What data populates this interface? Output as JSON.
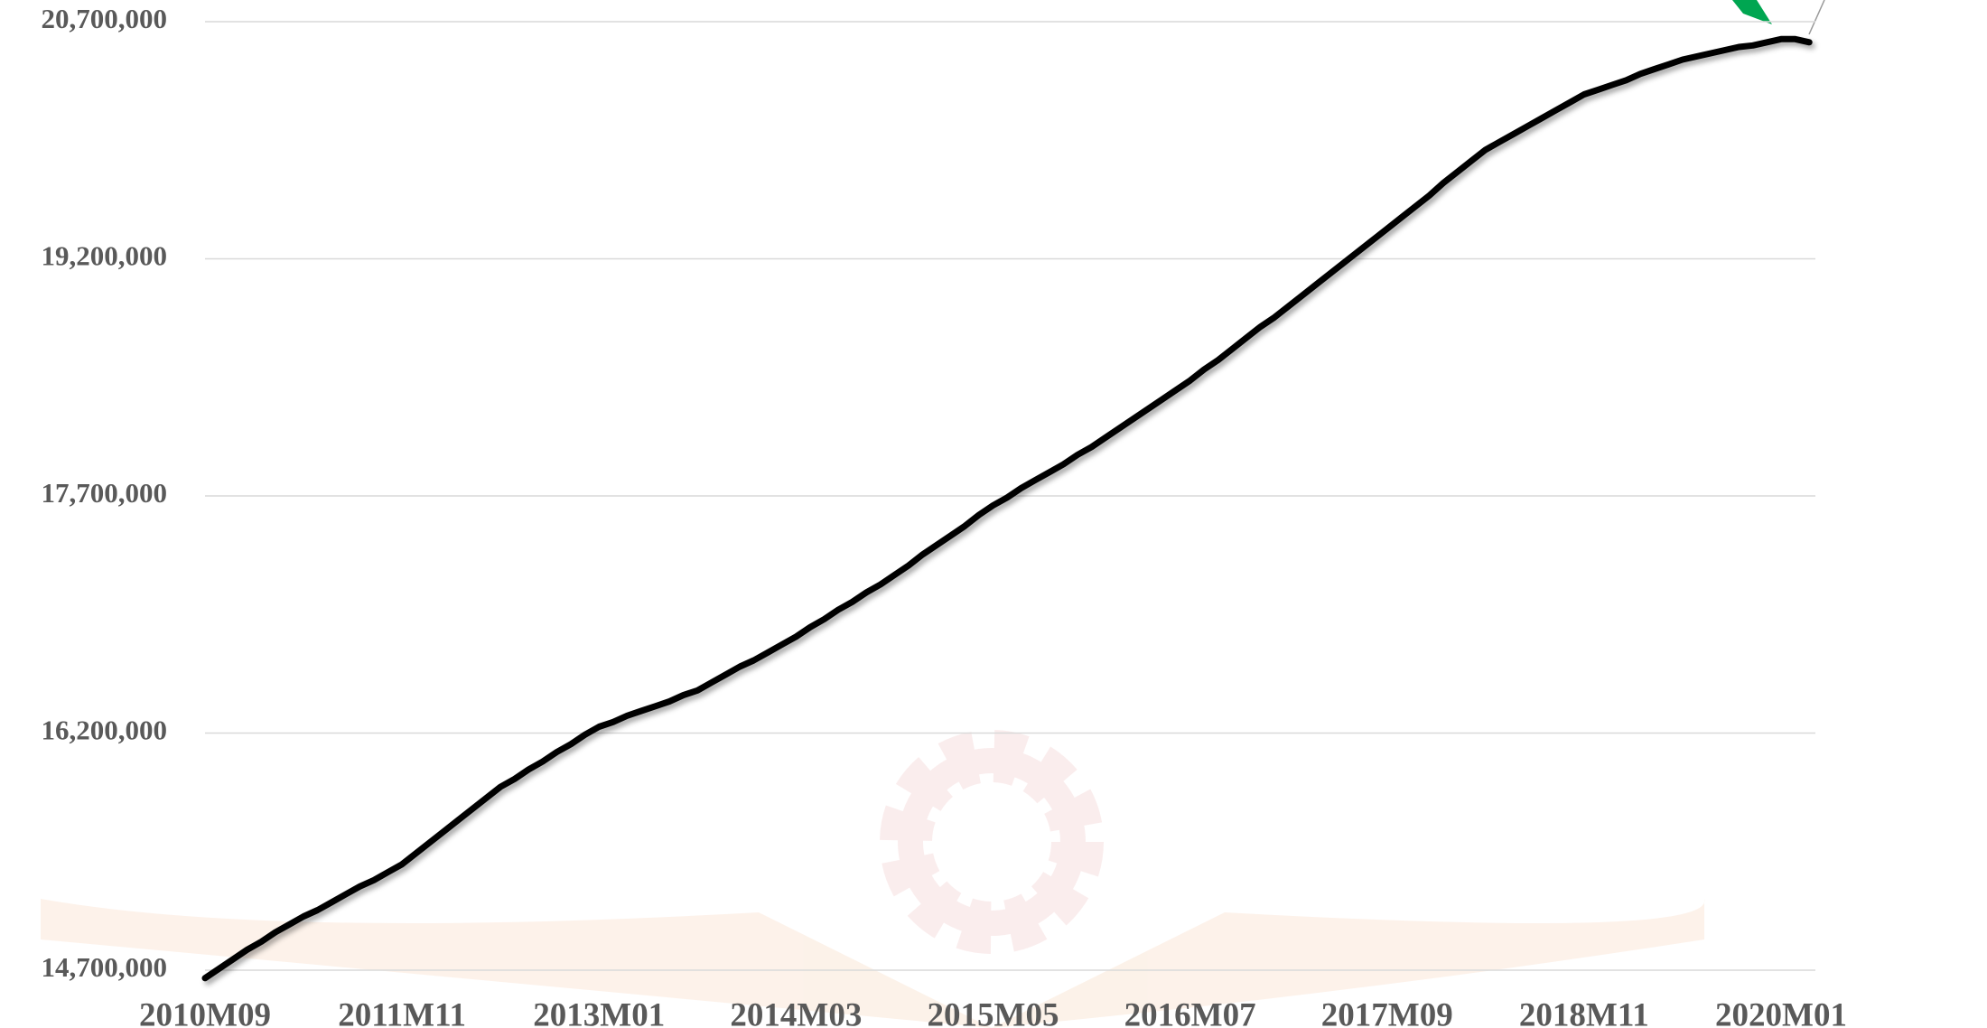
{
  "chart_data": {
    "type": "line",
    "categories": [
      "2010M09",
      null,
      null,
      null,
      null,
      null,
      null,
      null,
      null,
      null,
      null,
      null,
      null,
      null,
      "2011M11",
      null,
      null,
      null,
      null,
      null,
      null,
      null,
      null,
      null,
      null,
      null,
      null,
      null,
      "2013M01",
      null,
      null,
      null,
      null,
      null,
      null,
      null,
      null,
      null,
      null,
      null,
      null,
      null,
      "2014M03",
      null,
      null,
      null,
      null,
      null,
      null,
      null,
      null,
      null,
      null,
      null,
      null,
      null,
      "2015M05",
      null,
      null,
      null,
      null,
      null,
      null,
      null,
      null,
      null,
      null,
      null,
      null,
      null,
      "2016M07",
      null,
      null,
      null,
      null,
      null,
      null,
      null,
      null,
      null,
      null,
      null,
      null,
      null,
      "2017M09",
      null,
      null,
      null,
      null,
      null,
      null,
      null,
      null,
      null,
      null,
      null,
      null,
      null,
      "2018M11",
      null,
      null,
      null,
      null,
      null,
      null,
      null,
      null,
      null,
      null,
      null,
      null,
      null,
      "2020M01",
      null,
      null
    ],
    "series": [
      {
        "color": "#000000",
        "values": [
          14650000,
          14710000,
          14770000,
          14830000,
          14880000,
          14940000,
          14990000,
          15040000,
          15080000,
          15130000,
          15180000,
          15230000,
          15270000,
          15320000,
          15370000,
          15440000,
          15510000,
          15580000,
          15650000,
          15720000,
          15790000,
          15860000,
          15910000,
          15970000,
          16020000,
          16080000,
          16130000,
          16190000,
          16240000,
          16270000,
          16310000,
          16340000,
          16370000,
          16400000,
          16440000,
          16470000,
          16520000,
          16570000,
          16620000,
          16660000,
          16710000,
          16760000,
          16810000,
          16870000,
          16920000,
          16980000,
          17030000,
          17090000,
          17140000,
          17200000,
          17260000,
          17330000,
          17390000,
          17450000,
          17510000,
          17580000,
          17640000,
          17690000,
          17750000,
          17800000,
          17850000,
          17900000,
          17960000,
          18010000,
          18070000,
          18130000,
          18190000,
          18250000,
          18310000,
          18370000,
          18430000,
          18500000,
          18560000,
          18630000,
          18700000,
          18770000,
          18830000,
          18900000,
          18970000,
          19040000,
          19110000,
          19180000,
          19250000,
          19320000,
          19390000,
          19460000,
          19530000,
          19600000,
          19680000,
          19750000,
          19820000,
          19890000,
          19940000,
          19990000,
          20040000,
          20090000,
          20140000,
          20190000,
          20240000,
          20270000,
          20300000,
          20330000,
          20370000,
          20400000,
          20430000,
          20460000,
          20480000,
          20500000,
          20520000,
          20540000,
          20550000,
          20570000,
          20590000,
          20590000,
          20570000
        ]
      }
    ],
    "ylim": [
      14700000,
      20700000
    ],
    "yticks": [
      {
        "value": 14700000,
        "label": "14,700,000"
      },
      {
        "value": 16200000,
        "label": "16,200,000"
      },
      {
        "value": 17700000,
        "label": "17,700,000"
      },
      {
        "value": 19200000,
        "label": "19,200,000"
      },
      {
        "value": 20700000,
        "label": "20,700,000"
      }
    ],
    "grid": true
  }
}
